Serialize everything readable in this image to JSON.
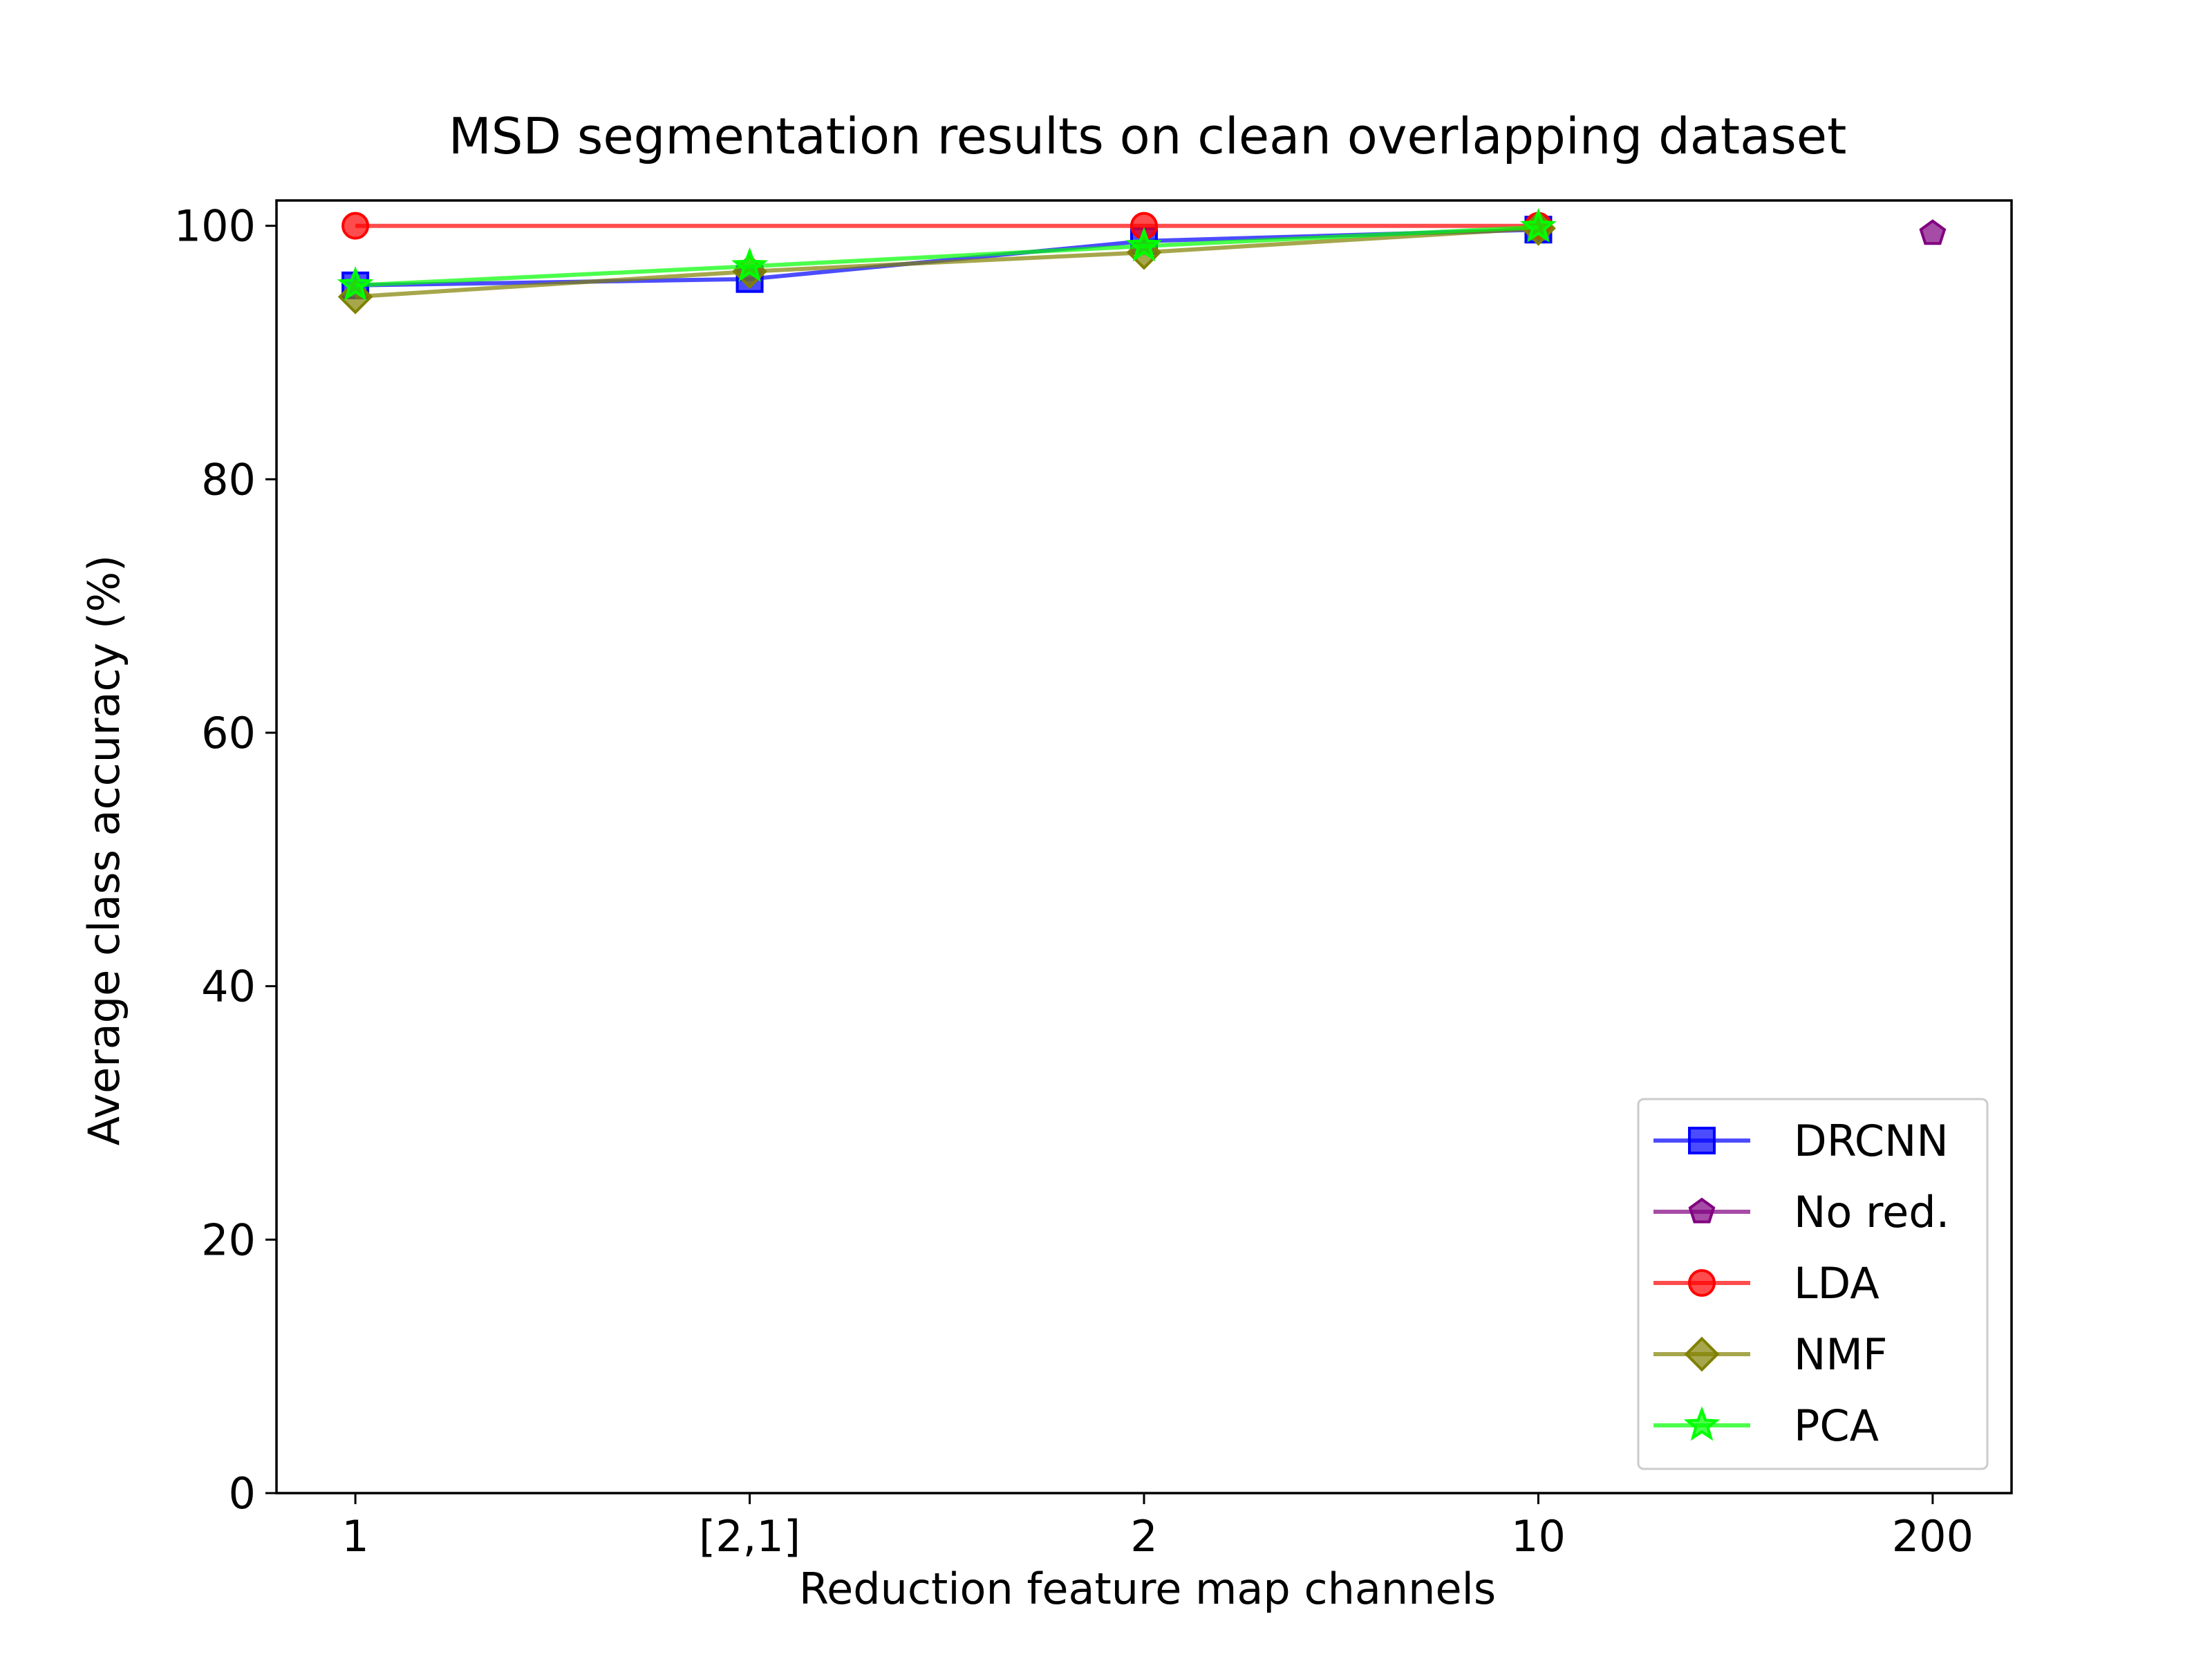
{
  "chart_data": {
    "type": "line",
    "title": "MSD segmentation results on clean overlapping dataset",
    "xlabel": "Reduction feature map channels",
    "ylabel": "Average class accuracy (%)",
    "categories": [
      "1",
      "[2,1]",
      "2",
      "10",
      "200"
    ],
    "ylim": [
      0,
      102
    ],
    "yticks": [
      0,
      20,
      40,
      60,
      80,
      100
    ],
    "grid": false,
    "legend_position": "lower right",
    "series": [
      {
        "name": "DRCNN",
        "color": "#0000ff",
        "marker": "square",
        "values": [
          95.3,
          95.8,
          98.8,
          99.7,
          null
        ]
      },
      {
        "name": "No red.",
        "color": "#800080",
        "marker": "pentagon",
        "values": [
          null,
          null,
          null,
          null,
          99.4
        ]
      },
      {
        "name": "LDA",
        "color": "#ff0000",
        "marker": "circle",
        "values": [
          100.0,
          null,
          100.0,
          100.0,
          null
        ]
      },
      {
        "name": "NMF",
        "color": "#808000",
        "marker": "diamond",
        "values": [
          94.4,
          96.4,
          97.9,
          99.8,
          null
        ]
      },
      {
        "name": "PCA",
        "color": "#00ff00",
        "marker": "star",
        "values": [
          95.3,
          96.8,
          98.4,
          99.9,
          null
        ]
      }
    ]
  }
}
